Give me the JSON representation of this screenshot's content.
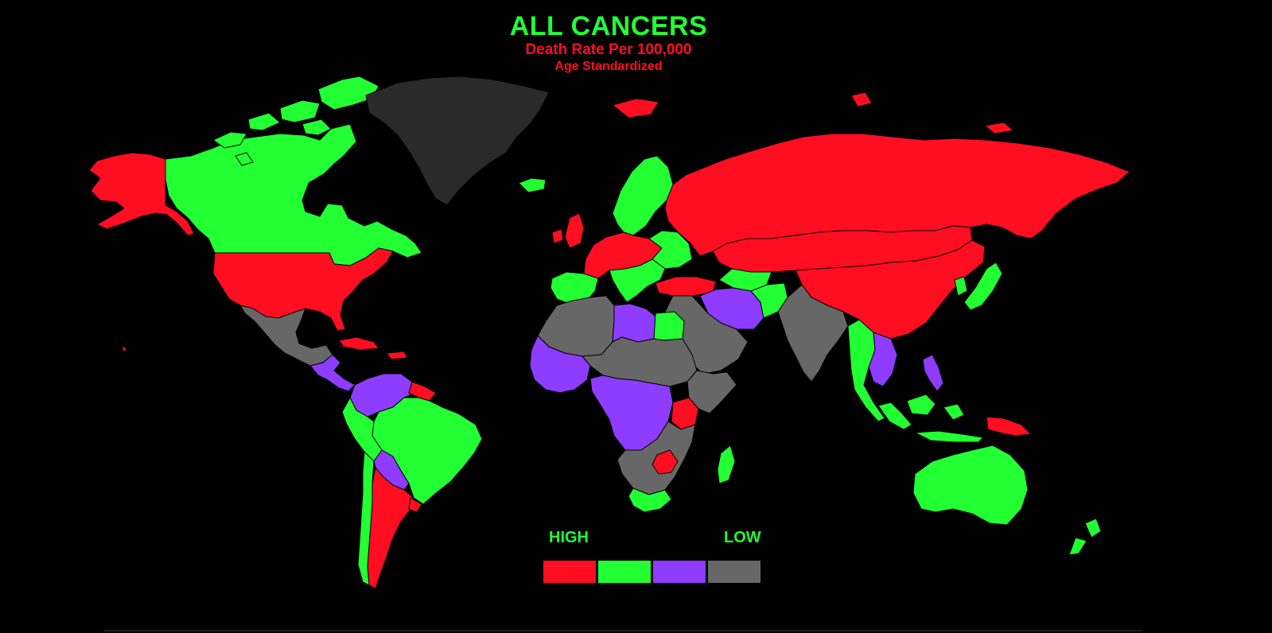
{
  "header": {
    "title": "ALL CANCERS",
    "subtitle": "Death Rate Per 100,000",
    "note": "Age Standardized"
  },
  "legend": {
    "high_label": "HIGH",
    "low_label": "LOW",
    "levels": [
      {
        "name": "high",
        "color": "#ff0e22"
      },
      {
        "name": "upper-middle",
        "color": "#22ff32"
      },
      {
        "name": "lower-middle",
        "color": "#8e3cff"
      },
      {
        "name": "low",
        "color": "#676767"
      }
    ]
  },
  "colors": {
    "background": "#000000",
    "title": "#22ff32",
    "subtitle": "#ff0e22",
    "no_data": "#2a2a2a",
    "border": "#000000"
  },
  "map_data": {
    "type": "choropleth",
    "projection": "equirectangular",
    "regions": [
      {
        "id": "canada",
        "level": 1
      },
      {
        "id": "alaska",
        "level": 0
      },
      {
        "id": "usa",
        "level": 0
      },
      {
        "id": "greenland",
        "level": -1
      },
      {
        "id": "iceland",
        "level": 1
      },
      {
        "id": "mexico",
        "level": 3
      },
      {
        "id": "central-america",
        "level": 2
      },
      {
        "id": "caribbean",
        "level": 0
      },
      {
        "id": "colombia-venezuela",
        "level": 2
      },
      {
        "id": "guianas",
        "level": 0
      },
      {
        "id": "ecuador",
        "level": 1
      },
      {
        "id": "brazil",
        "level": 1
      },
      {
        "id": "peru",
        "level": 1
      },
      {
        "id": "bolivia-paraguay",
        "level": 2
      },
      {
        "id": "argentina",
        "level": 0
      },
      {
        "id": "chile",
        "level": 1
      },
      {
        "id": "uruguay",
        "level": 0
      },
      {
        "id": "scandinavia",
        "level": 1
      },
      {
        "id": "uk-ireland",
        "level": 0
      },
      {
        "id": "iberia",
        "level": 1
      },
      {
        "id": "western-europe",
        "level": 0
      },
      {
        "id": "eastern-europe",
        "level": 1
      },
      {
        "id": "italy-balkans",
        "level": 1
      },
      {
        "id": "turkey",
        "level": 0
      },
      {
        "id": "russia",
        "level": 0
      },
      {
        "id": "kazakhstan-mongolia",
        "level": 0
      },
      {
        "id": "china",
        "level": 0
      },
      {
        "id": "north-africa-west",
        "level": 3
      },
      {
        "id": "libya",
        "level": 2
      },
      {
        "id": "egypt",
        "level": 1
      },
      {
        "id": "west-africa",
        "level": 2
      },
      {
        "id": "sahel",
        "level": 3
      },
      {
        "id": "central-africa",
        "level": 2
      },
      {
        "id": "east-africa",
        "level": 3
      },
      {
        "id": "kenya",
        "level": 0
      },
      {
        "id": "southern-africa",
        "level": 3
      },
      {
        "id": "zimbabwe",
        "level": 0
      },
      {
        "id": "south-africa",
        "level": 1
      },
      {
        "id": "madagascar",
        "level": 1
      },
      {
        "id": "arabia",
        "level": 3
      },
      {
        "id": "iran",
        "level": 2
      },
      {
        "id": "afghanistan",
        "level": 1
      },
      {
        "id": "central-asia-south",
        "level": 1
      },
      {
        "id": "india",
        "level": 3
      },
      {
        "id": "southeast-asia",
        "level": 1
      },
      {
        "id": "indochina",
        "level": 2
      },
      {
        "id": "indonesia",
        "level": 1
      },
      {
        "id": "philippines",
        "level": 2
      },
      {
        "id": "japan-korea",
        "level": 1
      },
      {
        "id": "papua",
        "level": 0
      },
      {
        "id": "australia",
        "level": 1
      },
      {
        "id": "new-zealand",
        "level": 1
      }
    ]
  }
}
